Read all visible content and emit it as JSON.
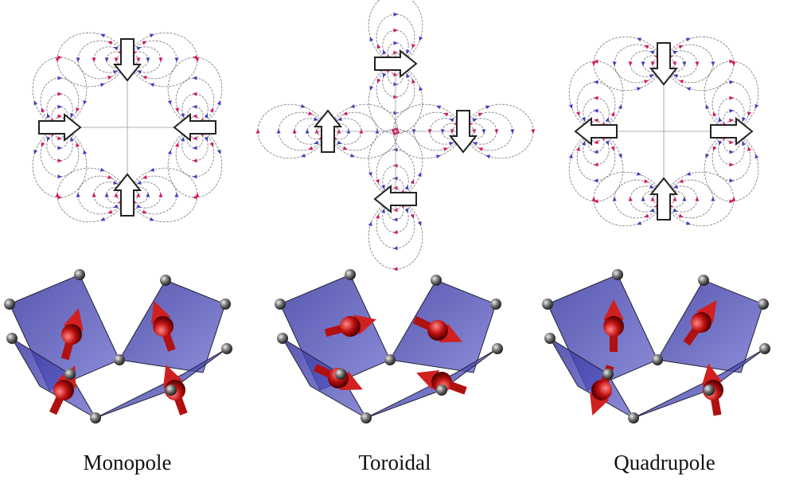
{
  "panels": [
    {
      "label": "Monopole"
    },
    {
      "label": "Toroidal"
    },
    {
      "label": "Quadrupole"
    }
  ]
}
